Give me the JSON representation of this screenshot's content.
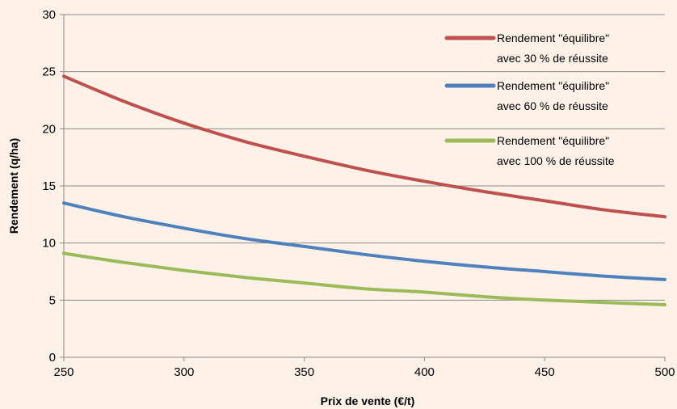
{
  "chart_data": {
    "type": "line",
    "xlabel": "Prix de vente (€/t)",
    "ylabel": "Rendement (q/ha)",
    "xlim": [
      250,
      500
    ],
    "ylim": [
      0,
      30
    ],
    "x_ticks": [
      250,
      300,
      350,
      400,
      450,
      500
    ],
    "y_ticks": [
      0,
      5,
      10,
      15,
      20,
      25,
      30
    ],
    "grid": "horizontal",
    "legend_position": "top-right",
    "x": [
      250,
      275,
      300,
      325,
      350,
      375,
      400,
      425,
      450,
      475,
      500
    ],
    "series": [
      {
        "name": "Rendement \"équilibre\" avec 30 % de réussite",
        "legend_lines": [
          "Rendement \"équilibre\"",
          "avec 30 % de réussite"
        ],
        "color": "#C0504D",
        "values": [
          24.6,
          22.4,
          20.5,
          18.9,
          17.6,
          16.4,
          15.4,
          14.5,
          13.7,
          12.9,
          12.3
        ]
      },
      {
        "name": "Rendement \"équilibre\" avec 60 % de réussite",
        "legend_lines": [
          "Rendement \"équilibre\"",
          "avec 60 % de réussite"
        ],
        "color": "#4F81BD",
        "values": [
          13.5,
          12.3,
          11.3,
          10.4,
          9.7,
          9.0,
          8.4,
          7.9,
          7.5,
          7.1,
          6.8
        ]
      },
      {
        "name": "Rendement \"équilibre\" avec 100 % de réussite",
        "legend_lines": [
          "Rendement \"équilibre\"",
          "avec 100 % de réussite"
        ],
        "color": "#9BBB59",
        "values": [
          9.1,
          8.3,
          7.6,
          7.0,
          6.5,
          6.0,
          5.7,
          5.3,
          5.0,
          4.8,
          4.6
        ]
      }
    ]
  }
}
